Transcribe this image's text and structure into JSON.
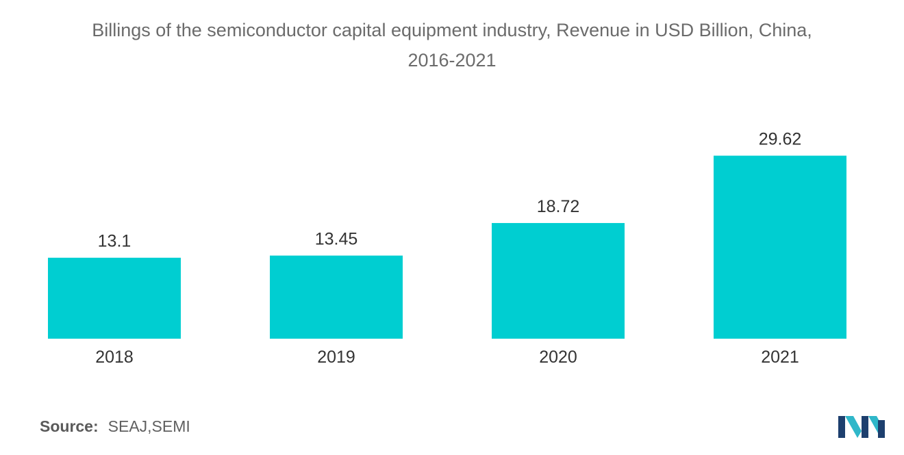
{
  "title": {
    "line1": "Billings of the semiconductor capital equipment industry, Revenue in USD Billion, China,",
    "line2": "2016-2021"
  },
  "source": {
    "label": "Source:",
    "text": "SEAJ,SEMI"
  },
  "logo": {
    "icon": "mordor-intelligence-logo-icon",
    "colors": [
      "#1d3f6e",
      "#2fb7c9"
    ]
  },
  "chart_data": {
    "type": "bar",
    "categories": [
      "2018",
      "2019",
      "2020",
      "2021"
    ],
    "values": [
      13.1,
      13.45,
      18.72,
      29.62
    ],
    "value_labels": [
      "13.1",
      "13.45",
      "18.72",
      "29.62"
    ],
    "title": "Billings of the semiconductor capital equipment industry, Revenue in USD Billion, China, 2016-2021",
    "xlabel": "",
    "ylabel": "",
    "ylim": [
      0,
      30
    ],
    "grid": false,
    "legend": "none",
    "bar_color": "#00ced1"
  }
}
